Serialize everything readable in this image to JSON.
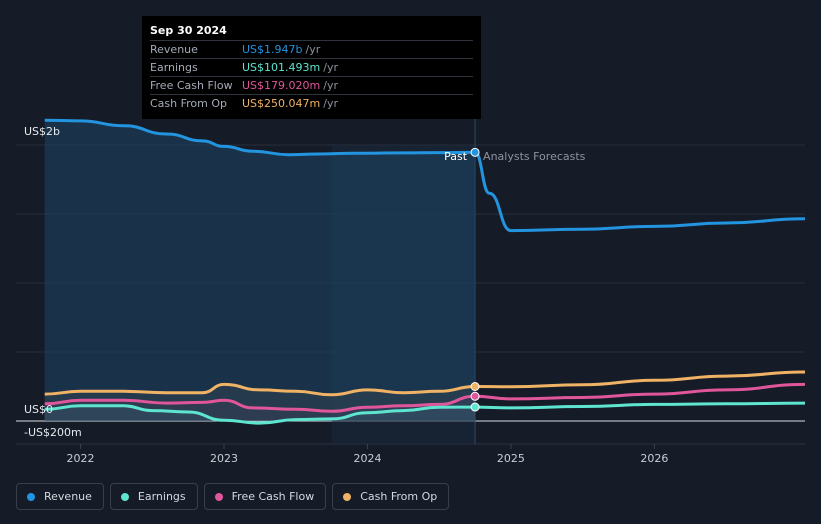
{
  "chart_data": {
    "type": "line",
    "y_axis_labels": [
      "US$2b",
      "US$0",
      "-US$200m"
    ],
    "ylim": [
      -200,
      2000
    ],
    "x_ticks": [
      {
        "label": "2022",
        "x": 2022.0
      },
      {
        "label": "2023",
        "x": 2023.0
      },
      {
        "label": "2024",
        "x": 2024.0
      },
      {
        "label": "2025",
        "x": 2025.0
      },
      {
        "label": "2026",
        "x": 2026.0
      }
    ],
    "xlim": [
      2021.55,
      2027.05
    ],
    "past_label": "Past",
    "forecast_label": "Analysts Forecasts",
    "divider_x": 2024.75,
    "highlight_start": 2023.75,
    "series": [
      {
        "name": "Revenue",
        "color": "#2394df",
        "fill": true,
        "past": [
          [
            2021.75,
            2180
          ],
          [
            2022.0,
            2175
          ],
          [
            2022.3,
            2140
          ],
          [
            2022.6,
            2080
          ],
          [
            2022.85,
            2030
          ],
          [
            2023.0,
            1990
          ],
          [
            2023.2,
            1955
          ],
          [
            2023.45,
            1930
          ],
          [
            2023.65,
            1935
          ],
          [
            2023.9,
            1940
          ],
          [
            2024.25,
            1943
          ],
          [
            2024.5,
            1945
          ],
          [
            2024.75,
            1947
          ]
        ],
        "forecast": [
          [
            2024.75,
            1947
          ],
          [
            2024.85,
            1650
          ],
          [
            2025.0,
            1380
          ],
          [
            2025.5,
            1390
          ],
          [
            2026.0,
            1410
          ],
          [
            2026.5,
            1435
          ],
          [
            2027.05,
            1465
          ]
        ]
      },
      {
        "name": "Earnings",
        "color": "#5ee5cf",
        "fill": false,
        "past": [
          [
            2021.75,
            85
          ],
          [
            2022.0,
            110
          ],
          [
            2022.3,
            110
          ],
          [
            2022.5,
            75
          ],
          [
            2022.75,
            65
          ],
          [
            2023.0,
            5
          ],
          [
            2023.25,
            -15
          ],
          [
            2023.5,
            10
          ],
          [
            2023.75,
            15
          ],
          [
            2024.0,
            60
          ],
          [
            2024.25,
            75
          ],
          [
            2024.5,
            100
          ],
          [
            2024.75,
            101
          ]
        ],
        "forecast": [
          [
            2024.75,
            101
          ],
          [
            2025.0,
            95
          ],
          [
            2025.5,
            105
          ],
          [
            2026.0,
            120
          ],
          [
            2026.5,
            125
          ],
          [
            2027.05,
            130
          ]
        ]
      },
      {
        "name": "Free Cash Flow",
        "color": "#e0569b",
        "fill": false,
        "past": [
          [
            2021.75,
            125
          ],
          [
            2022.0,
            150
          ],
          [
            2022.3,
            150
          ],
          [
            2022.6,
            130
          ],
          [
            2022.85,
            135
          ],
          [
            2023.0,
            150
          ],
          [
            2023.2,
            95
          ],
          [
            2023.5,
            85
          ],
          [
            2023.75,
            70
          ],
          [
            2024.0,
            100
          ],
          [
            2024.25,
            110
          ],
          [
            2024.5,
            120
          ],
          [
            2024.75,
            179
          ]
        ],
        "forecast": [
          [
            2024.75,
            179
          ],
          [
            2025.0,
            160
          ],
          [
            2025.5,
            170
          ],
          [
            2026.0,
            195
          ],
          [
            2026.5,
            225
          ],
          [
            2027.05,
            265
          ]
        ]
      },
      {
        "name": "Cash From Op",
        "color": "#f0b264",
        "fill": false,
        "past": [
          [
            2021.75,
            195
          ],
          [
            2022.0,
            215
          ],
          [
            2022.3,
            215
          ],
          [
            2022.6,
            205
          ],
          [
            2022.85,
            205
          ],
          [
            2023.0,
            265
          ],
          [
            2023.25,
            225
          ],
          [
            2023.5,
            215
          ],
          [
            2023.75,
            190
          ],
          [
            2024.0,
            225
          ],
          [
            2024.25,
            205
          ],
          [
            2024.5,
            215
          ],
          [
            2024.75,
            250
          ]
        ],
        "forecast": [
          [
            2024.75,
            250
          ],
          [
            2025.0,
            248
          ],
          [
            2025.5,
            262
          ],
          [
            2026.0,
            295
          ],
          [
            2026.5,
            325
          ],
          [
            2027.05,
            355
          ]
        ]
      }
    ]
  },
  "tooltip": {
    "date": "Sep 30 2024",
    "unit": "/yr",
    "rows": [
      {
        "label": "Revenue",
        "value": "US$1.947b",
        "color": "#2394df"
      },
      {
        "label": "Earnings",
        "value": "US$101.493m",
        "color": "#5ee5cf"
      },
      {
        "label": "Free Cash Flow",
        "value": "US$179.020m",
        "color": "#e0569b"
      },
      {
        "label": "Cash From Op",
        "value": "US$250.047m",
        "color": "#f0b264"
      }
    ]
  },
  "legend": [
    {
      "label": "Revenue",
      "color": "#2394df"
    },
    {
      "label": "Earnings",
      "color": "#5ee5cf"
    },
    {
      "label": "Free Cash Flow",
      "color": "#e0569b"
    },
    {
      "label": "Cash From Op",
      "color": "#f0b264"
    }
  ]
}
